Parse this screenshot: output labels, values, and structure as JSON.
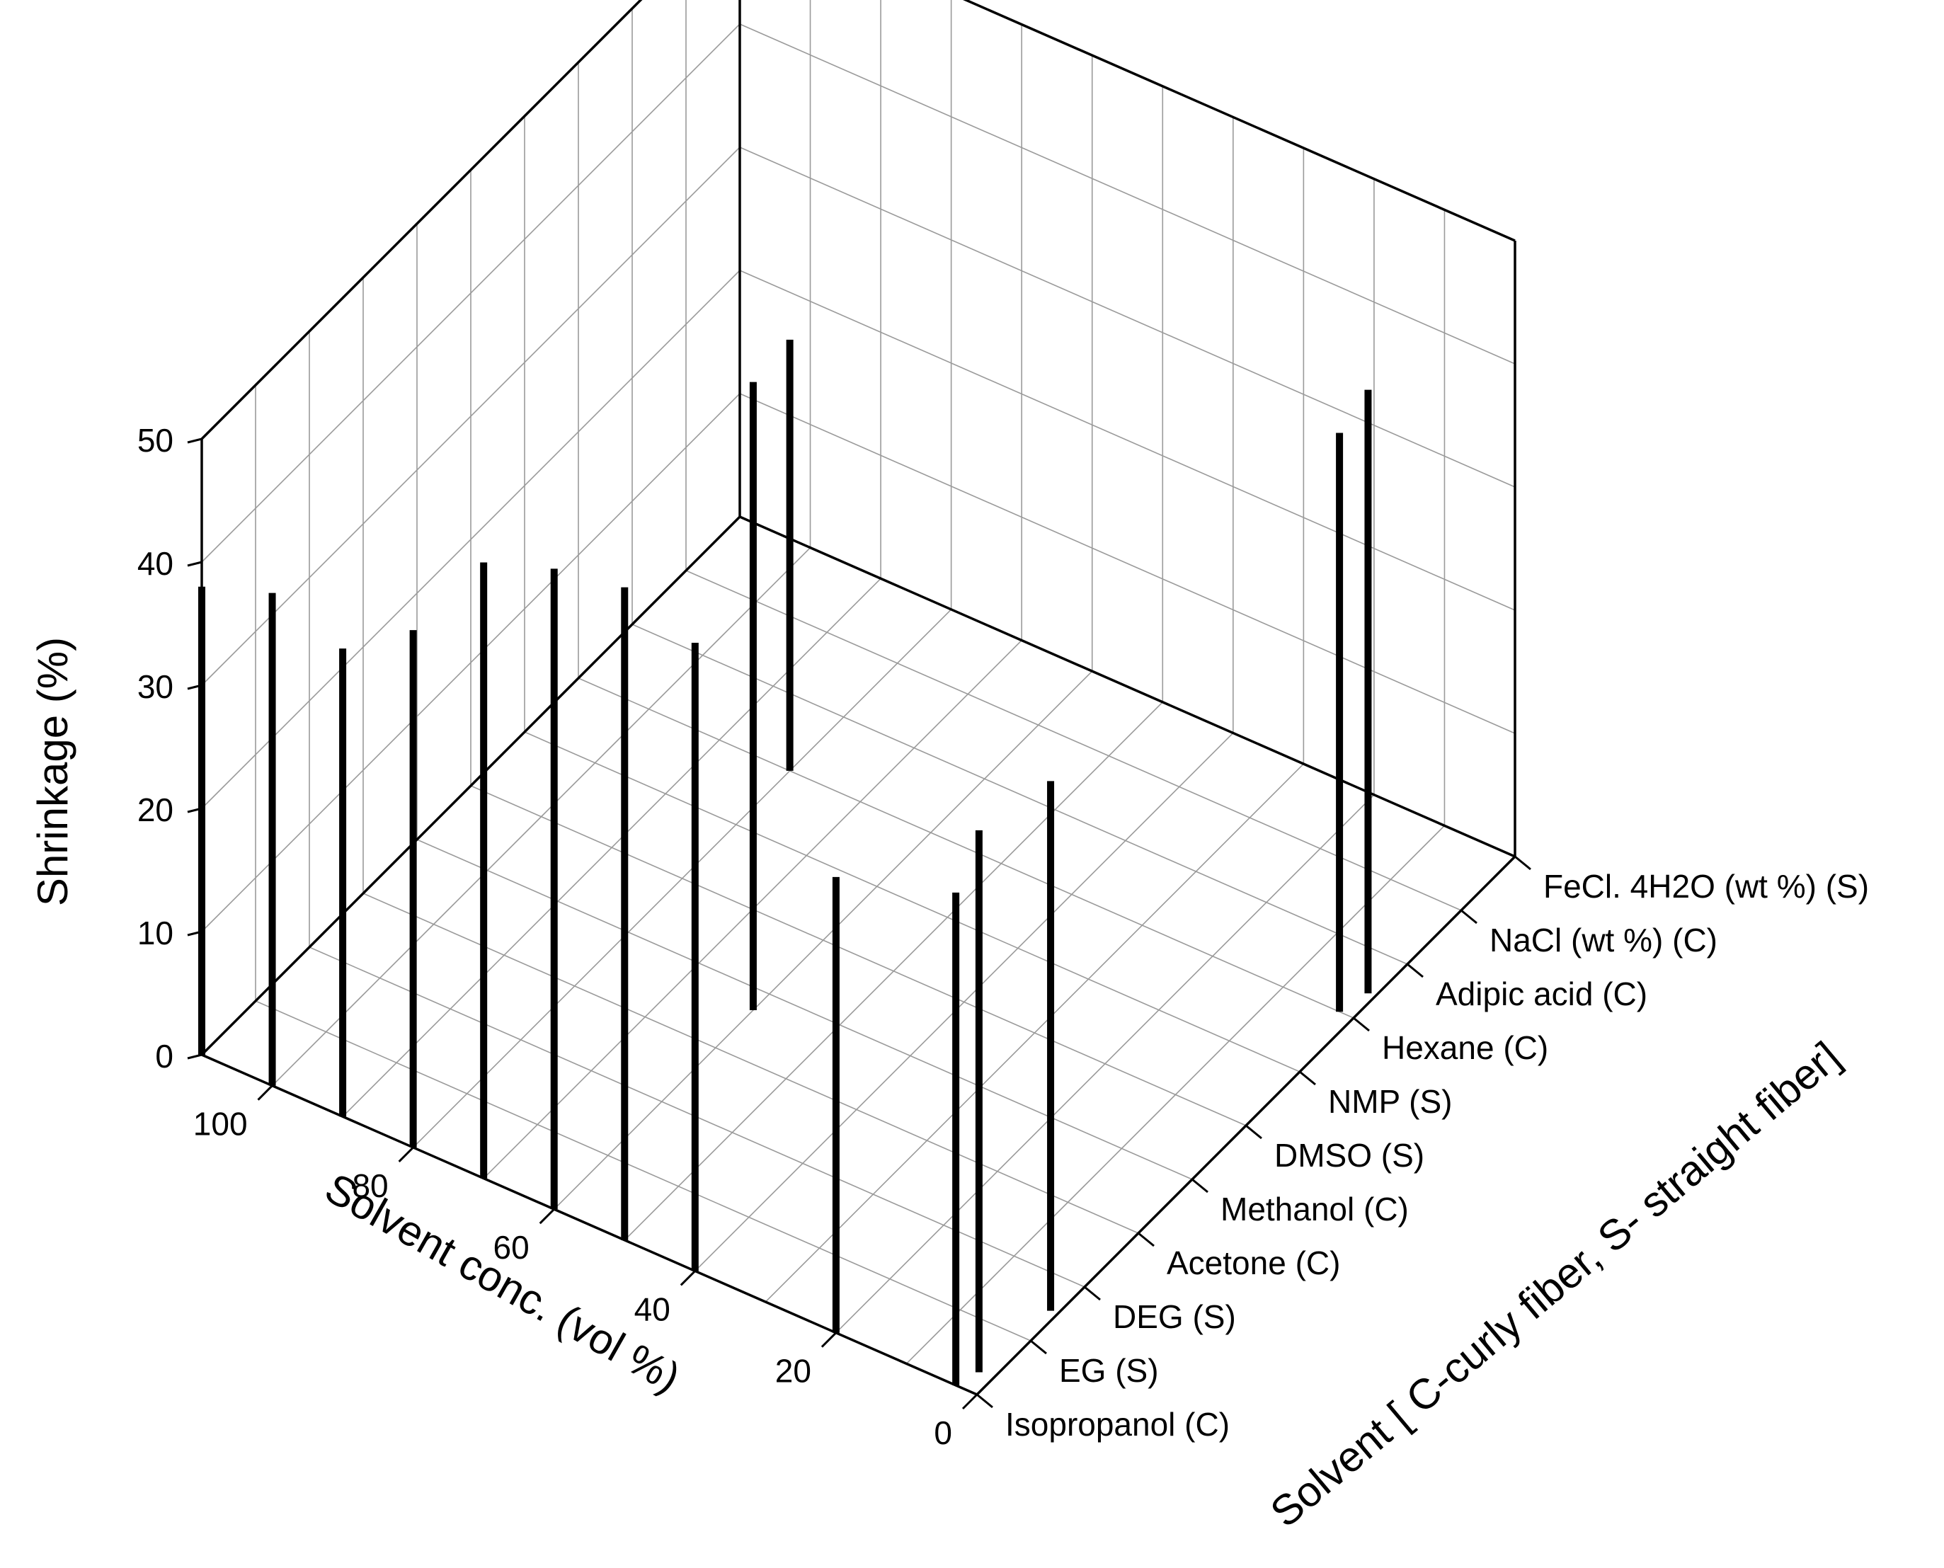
{
  "chart_data": {
    "type": "bar3d",
    "title": "",
    "zlabel": "Shrinkage (%)",
    "xlabel": "Solvent conc. (vol %)",
    "ylabel": "Solvent [ C-curly fiber, S- straight fiber]",
    "z_ticks": [
      "0",
      "10",
      "20",
      "30",
      "40",
      "50"
    ],
    "x_ticks": [
      "0",
      "20",
      "40",
      "60",
      "80",
      "100"
    ],
    "zlim": [
      0,
      50
    ],
    "xlim": [
      0,
      110
    ],
    "categories": [
      "Isopropanol (C)",
      "EG (S)",
      "DEG (S)",
      "Acetone (C)",
      "Methanol (C)",
      "DMSO (S)",
      "NMP (S)",
      "Hexane (C)",
      "Adipic acid (C)",
      "NaCl (wt %) (C)",
      "FeCl. 4H2O (wt %) (S)"
    ],
    "grid": true,
    "points": [
      {
        "x": 110,
        "y": 0,
        "z": 38
      },
      {
        "x": 100,
        "y": 0,
        "z": 40
      },
      {
        "x": 90,
        "y": 0,
        "z": 38
      },
      {
        "x": 80,
        "y": 0,
        "z": 42
      },
      {
        "x": 70,
        "y": 0,
        "z": 50
      },
      {
        "x": 60,
        "y": 0,
        "z": 52
      },
      {
        "x": 50,
        "y": 0,
        "z": 53
      },
      {
        "x": 40,
        "y": 0,
        "z": 51
      },
      {
        "x": 20,
        "y": 0,
        "z": 37
      },
      {
        "x": 60,
        "y": 3.7,
        "z": 51
      },
      {
        "x": 80,
        "y": 7,
        "z": 35
      },
      {
        "x": 3,
        "y": 0,
        "z": 40
      },
      {
        "x": 2,
        "y": 0.3,
        "z": 44
      },
      {
        "x": 1,
        "y": 1.5,
        "z": 43
      },
      {
        "x": 2,
        "y": 7,
        "z": 47
      },
      {
        "x": 1,
        "y": 7.4,
        "z": 49
      }
    ]
  }
}
